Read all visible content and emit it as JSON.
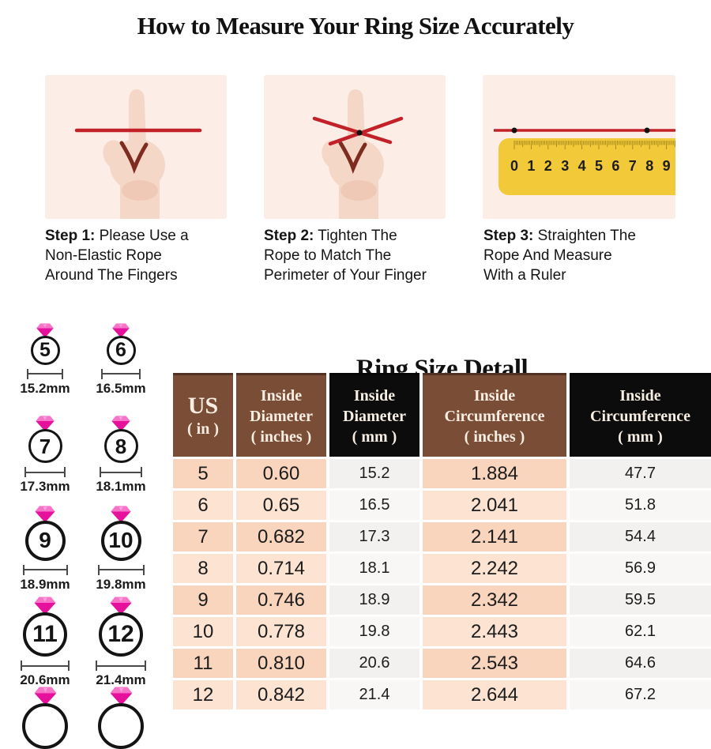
{
  "page_title": "How to Measure Your Ring Size Accurately",
  "steps": [
    {
      "prefix": "Step 1:",
      "lines": [
        " Please Use a",
        "Non-Elastic Rope",
        "Around The Fingers"
      ]
    },
    {
      "prefix": "Step 2:",
      "lines": [
        " Tighten The",
        "Rope to Match The",
        "Perimeter of Your Finger"
      ]
    },
    {
      "prefix": "Step 3:",
      "lines": [
        " Straighten The",
        "Rope And Measure",
        "With a Ruler"
      ]
    }
  ],
  "ruler": {
    "numbers": [
      "0",
      "1",
      "2",
      "3",
      "4",
      "5",
      "6",
      "7",
      "8",
      "9"
    ]
  },
  "ring_diameter_guide": {
    "rings": [
      {
        "size": "5",
        "label": "15.2mm"
      },
      {
        "size": "6",
        "label": "16.5mm"
      },
      {
        "size": "7",
        "label": "17.3mm"
      },
      {
        "size": "8",
        "label": "18.1mm"
      },
      {
        "size": "9",
        "label": "18.9mm"
      },
      {
        "size": "10",
        "label": "19.8mm"
      },
      {
        "size": "11",
        "label": "20.6mm"
      },
      {
        "size": "12",
        "label": "21.4mm"
      }
    ]
  },
  "table": {
    "title": "Ring Size Detall",
    "headers": [
      {
        "lines": [
          "US",
          "( in )"
        ],
        "theme": "brown"
      },
      {
        "lines": [
          "Inside",
          "Diameter",
          "( inches )"
        ],
        "theme": "brown"
      },
      {
        "lines": [
          "Inside",
          "Diameter",
          "( mm )"
        ],
        "theme": "black"
      },
      {
        "lines": [
          "Inside",
          "Circumference",
          "( inches )"
        ],
        "theme": "brown"
      },
      {
        "lines": [
          "Inside",
          "Circumference",
          "( mm )"
        ],
        "theme": "black"
      }
    ],
    "rows": [
      [
        "5",
        "0.60",
        "15.2",
        "1.884",
        "47.7"
      ],
      [
        "6",
        "0.65",
        "16.5",
        "2.041",
        "51.8"
      ],
      [
        "7",
        "0.682",
        "17.3",
        "2.141",
        "54.4"
      ],
      [
        "8",
        "0.714",
        "18.1",
        "2.242",
        "56.9"
      ],
      [
        "9",
        "0.746",
        "18.9",
        "2.342",
        "59.5"
      ],
      [
        "10",
        "0.778",
        "19.8",
        "2.443",
        "62.1"
      ],
      [
        "11",
        "0.810",
        "20.6",
        "2.543",
        "64.6"
      ],
      [
        "12",
        "0.842",
        "21.4",
        "2.644",
        "67.2"
      ]
    ]
  },
  "colors": {
    "red": "#C32128",
    "skin": "#F5D7C8",
    "skin_shadow": "#EFC9B6",
    "crease": "#7E2B20",
    "step_bg": "#FCEDE7",
    "ruler_yellow": "#F2CA39",
    "diamond_light": "#F874C9",
    "diamond_dark": "#E5109B",
    "header_brown": "#7A4E36",
    "header_black": "#0C0C0C",
    "header_text": "#F7EDE2",
    "peach_dark": "#F9D5BE",
    "peach_light": "#FCE3D2",
    "mm_col": "#F3F1EF",
    "mm_col_alt": "#F9F7F6",
    "ink": "#1C1C1C"
  }
}
